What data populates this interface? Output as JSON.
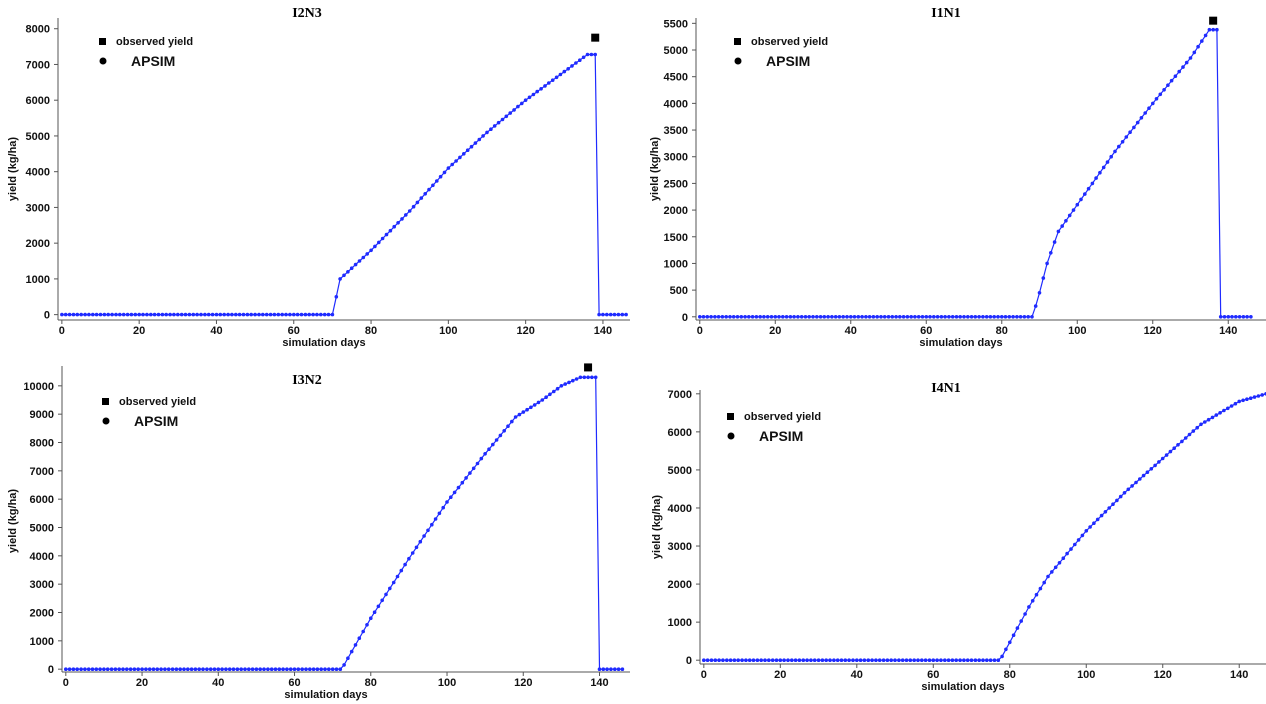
{
  "colors": {
    "series": "#1f2bff",
    "observed": "#000000",
    "axis": "#555555"
  },
  "chart_data": [
    {
      "type": "line",
      "title": "I2N3",
      "xlabel": "simulation days",
      "ylabel": "yield (kg/ha)",
      "xlim": [
        -1,
        147
      ],
      "ylim": [
        -150,
        8300
      ],
      "xticks": [
        0,
        20,
        40,
        60,
        80,
        100,
        120,
        140
      ],
      "yticks": [
        0,
        1000,
        2000,
        3000,
        4000,
        5000,
        6000,
        7000,
        8000
      ],
      "legend": [
        "observed yield",
        "APSIM"
      ],
      "series": [
        {
          "name": "APSIM",
          "curve": {
            "start": 71,
            "harvest": 139,
            "end": 146,
            "knots": [
              [
                70,
                0
              ],
              [
                71,
                500
              ],
              [
                72,
                1000
              ],
              [
                80,
                1800
              ],
              [
                90,
                2900
              ],
              [
                100,
                4100
              ],
              [
                110,
                5100
              ],
              [
                120,
                6000
              ],
              [
                130,
                6800
              ],
              [
                136,
                7280
              ],
              [
                138,
                7280
              ]
            ]
          }
        },
        {
          "name": "observed yield",
          "points": [
            [
              138,
              7750
            ]
          ]
        }
      ]
    },
    {
      "type": "line",
      "title": "I1N1",
      "xlabel": "simulation days",
      "ylabel": "yield (kg/ha)",
      "xlim": [
        -1,
        150
      ],
      "ylim": [
        -60,
        5600
      ],
      "xticks": [
        0,
        20,
        40,
        60,
        80,
        100,
        120,
        140
      ],
      "yticks": [
        0,
        500,
        1000,
        1500,
        2000,
        2500,
        3000,
        3500,
        4000,
        4500,
        5000,
        5500
      ],
      "legend": [
        "observed yield",
        "APSIM"
      ],
      "series": [
        {
          "name": "APSIM",
          "curve": {
            "start": 89,
            "harvest": 138,
            "end": 146,
            "knots": [
              [
                88,
                0
              ],
              [
                89,
                200
              ],
              [
                90,
                450
              ],
              [
                92,
                1000
              ],
              [
                95,
                1600
              ],
              [
                100,
                2100
              ],
              [
                110,
                3100
              ],
              [
                120,
                4000
              ],
              [
                130,
                4850
              ],
              [
                135,
                5380
              ],
              [
                137,
                5380
              ]
            ]
          }
        },
        {
          "name": "observed yield",
          "points": [
            [
              136,
              5550
            ]
          ]
        }
      ]
    },
    {
      "type": "line",
      "title": "I3N2",
      "xlabel": "simulation days",
      "ylabel": "yield (kg/ha)",
      "xlim": [
        -1,
        148
      ],
      "ylim": [
        -100,
        10700
      ],
      "xticks": [
        0,
        20,
        40,
        60,
        80,
        100,
        120,
        140
      ],
      "yticks": [
        0,
        1000,
        2000,
        3000,
        4000,
        5000,
        6000,
        7000,
        8000,
        9000,
        10000
      ],
      "legend": [
        "observed yield",
        "APSIM"
      ],
      "series": [
        {
          "name": "APSIM",
          "curve": {
            "start": 73,
            "harvest": 140,
            "end": 146,
            "knots": [
              [
                72,
                0
              ],
              [
                73,
                150
              ],
              [
                80,
                1800
              ],
              [
                90,
                3900
              ],
              [
                100,
                5900
              ],
              [
                110,
                7600
              ],
              [
                118,
                8900
              ],
              [
                125,
                9500
              ],
              [
                130,
                10000
              ],
              [
                135,
                10300
              ],
              [
                139,
                10300
              ]
            ]
          }
        },
        {
          "name": "observed yield",
          "points": [
            [
              137,
              10650
            ]
          ]
        }
      ]
    },
    {
      "type": "line",
      "title": "I4N1",
      "xlabel": "simulation days",
      "ylabel": "yield (kg/ha)",
      "xlim": [
        -1,
        147
      ],
      "ylim": [
        -100,
        7100
      ],
      "xticks": [
        0,
        20,
        40,
        60,
        80,
        100,
        120,
        140
      ],
      "yticks": [
        0,
        1000,
        2000,
        3000,
        4000,
        5000,
        6000,
        7000
      ],
      "legend": [
        "observed yield",
        "APSIM"
      ],
      "series": [
        {
          "name": "APSIM",
          "curve": {
            "start": 78,
            "harvest": null,
            "end": 147,
            "knots": [
              [
                77,
                0
              ],
              [
                78,
                100
              ],
              [
                85,
                1400
              ],
              [
                90,
                2200
              ],
              [
                100,
                3400
              ],
              [
                110,
                4400
              ],
              [
                120,
                5300
              ],
              [
                130,
                6200
              ],
              [
                140,
                6800
              ],
              [
                147,
                7000
              ]
            ]
          }
        }
      ]
    }
  ]
}
